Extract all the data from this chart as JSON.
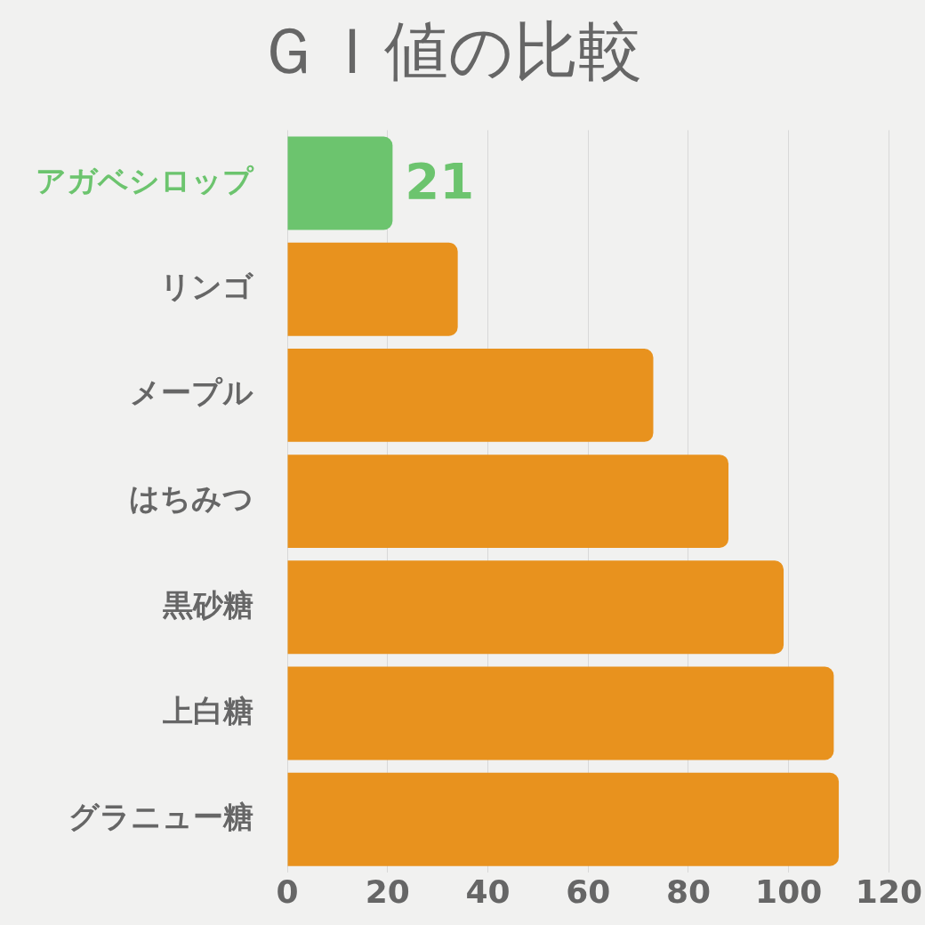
{
  "chart_data": {
    "type": "bar",
    "orientation": "horizontal",
    "title": "ＧＩ値の比較",
    "categories": [
      "アガベシロップ",
      "リンゴ",
      "メープル",
      "はちみつ",
      "黒砂糖",
      "上白糖",
      "グラニュー糖"
    ],
    "values": [
      21,
      34,
      73,
      88,
      99,
      109,
      110
    ],
    "colors": [
      "#6cc46e",
      "#e8921e",
      "#e8921e",
      "#e8921e",
      "#e8921e",
      "#e8921e",
      "#e8921e"
    ],
    "value_labels": [
      "21",
      null,
      null,
      null,
      null,
      null,
      null
    ],
    "xlim": [
      0,
      120
    ],
    "xticks": [
      0,
      20,
      40,
      60,
      80,
      100,
      120
    ],
    "grid": "x",
    "legend": false
  }
}
